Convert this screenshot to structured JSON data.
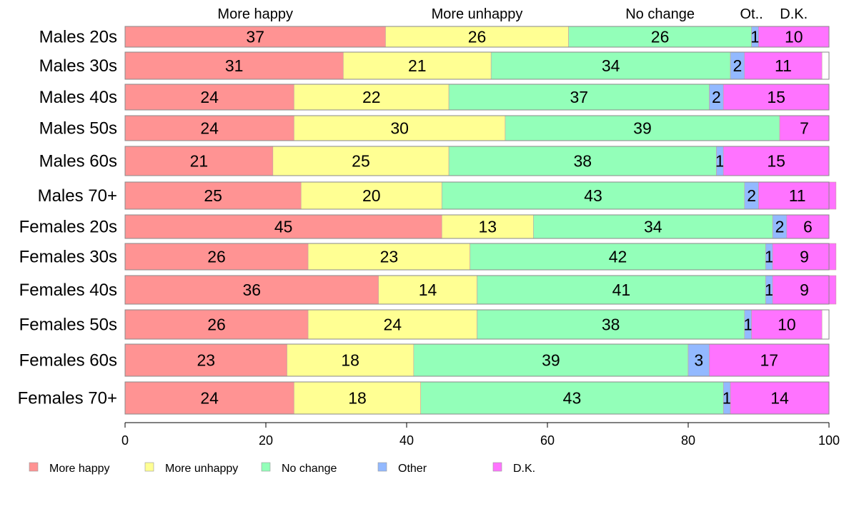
{
  "chart_data": {
    "type": "bar",
    "orientation": "horizontal",
    "stacked": true,
    "categories": [
      "Males 20s",
      "Males 30s",
      "Males 40s",
      "Males 50s",
      "Males 60s",
      "Males 70+",
      "Females 20s",
      "Females 30s",
      "Females 40s",
      "Females 50s",
      "Females 60s",
      "Females 70+"
    ],
    "series": [
      {
        "name": "More happy",
        "color": "#ff9393",
        "values": [
          37,
          31,
          24,
          24,
          21,
          25,
          45,
          26,
          36,
          26,
          23,
          24
        ]
      },
      {
        "name": "More unhappy",
        "color": "#ffff93",
        "values": [
          26,
          21,
          22,
          30,
          25,
          20,
          13,
          23,
          14,
          24,
          18,
          18
        ]
      },
      {
        "name": "No change",
        "color": "#93ffb9",
        "values": [
          26,
          34,
          37,
          39,
          38,
          43,
          34,
          42,
          41,
          38,
          39,
          43
        ]
      },
      {
        "name": "Other",
        "color": "#93b9ff",
        "values": [
          1,
          2,
          2,
          0,
          1,
          2,
          2,
          1,
          1,
          1,
          3,
          1
        ]
      },
      {
        "name": "D.K.",
        "color": "#ff73ff",
        "values": [
          10,
          11,
          15,
          7,
          15,
          11,
          6,
          9,
          9,
          10,
          17,
          14
        ]
      }
    ],
    "column_headers": [
      "More happy",
      "More unhappy",
      "No change",
      "Ot..",
      "D.K."
    ],
    "data_labels": [
      [
        "37",
        "26",
        "26",
        "1",
        "10"
      ],
      [
        "31",
        "21",
        "34",
        "2",
        "11"
      ],
      [
        "24",
        "22",
        "37",
        "2",
        "15"
      ],
      [
        "24",
        "30",
        "39",
        "",
        "7"
      ],
      [
        "21",
        "25",
        "38",
        "1",
        "15"
      ],
      [
        "25",
        "20",
        "43",
        "2",
        "11"
      ],
      [
        "45",
        "13",
        "34",
        "2",
        "6"
      ],
      [
        "26",
        "23",
        "42",
        "1",
        "9"
      ],
      [
        "36",
        "14",
        "41",
        "1",
        "9"
      ],
      [
        "26",
        "24",
        "38",
        "1",
        "10"
      ],
      [
        "23",
        "18",
        "39",
        "3",
        "17"
      ],
      [
        "24",
        "18",
        "43",
        "1",
        "14"
      ]
    ],
    "xlim": [
      0,
      100
    ],
    "xticks": [
      "0",
      "20",
      "40",
      "60",
      "80",
      "100"
    ],
    "grid": false,
    "legend_placement": "bottom-left",
    "legend": [
      "More happy",
      "More unhappy",
      "No change",
      "Other",
      "D.K."
    ]
  }
}
